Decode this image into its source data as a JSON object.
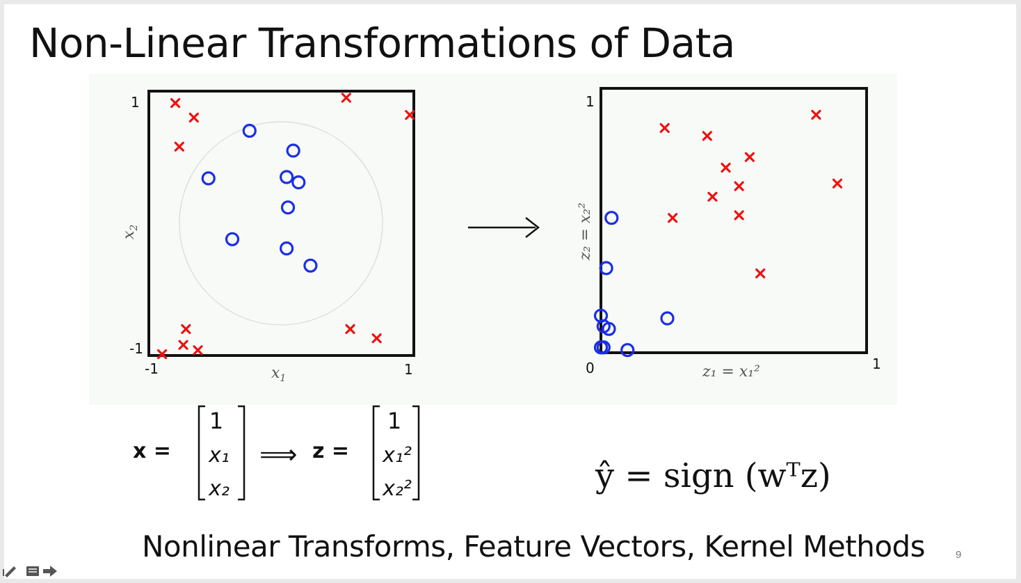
{
  "slide": {
    "title": "Non-Linear Transformations of Data",
    "footer": "Nonlinear Transforms, Feature Vectors, Kernel Methods",
    "page_number": "9"
  },
  "colors": {
    "positive": "#ee1111",
    "negative": "#1a2ee6",
    "axis": "#111111"
  },
  "plots": {
    "left": {
      "x_min": "-1",
      "x_max": "1",
      "y_min": "-1",
      "y_max": "1",
      "x_label_main": "x",
      "x_label_sub": "1",
      "y_label_main": "x",
      "y_label_sub": "2"
    },
    "right": {
      "origin": "0",
      "x_max": "1",
      "y_max": "1",
      "x_label": "z₁ = x₁²",
      "y_label": "z₂ = x₂²"
    }
  },
  "formulas": {
    "x_vector_lhs": "x =",
    "arrow": "⟹",
    "z_vector_lhs": "z =",
    "x_vector": [
      "1",
      "x₁",
      "x₂"
    ],
    "z_vector": [
      "1",
      "x₁²",
      "x₂²"
    ],
    "prediction": "ŷ = sign (wᵀz)"
  },
  "chart_data": [
    {
      "type": "scatter",
      "title": "",
      "xlabel": "x1",
      "ylabel": "x2",
      "xlim": [
        -1,
        1
      ],
      "ylim": [
        -1,
        1
      ],
      "grid": false,
      "annotations": [
        "faint circle of radius ~0.77 centred at (0, 0)"
      ],
      "series": [
        {
          "marker": "x",
          "color": "#ee1111",
          "points": [
            [
              -0.8,
              0.91
            ],
            [
              -0.66,
              0.8
            ],
            [
              -0.77,
              0.58
            ],
            [
              0.49,
              0.95
            ],
            [
              0.97,
              0.82
            ],
            [
              -0.72,
              -0.8
            ],
            [
              -0.74,
              -0.92
            ],
            [
              -0.63,
              -0.96
            ],
            [
              -0.9,
              -0.99
            ],
            [
              0.52,
              -0.8
            ],
            [
              0.72,
              -0.87
            ]
          ]
        },
        {
          "marker": "o",
          "color": "#1a2ee6",
          "points": [
            [
              -0.24,
              0.7
            ],
            [
              0.09,
              0.55
            ],
            [
              -0.55,
              0.34
            ],
            [
              0.04,
              0.35
            ],
            [
              0.13,
              0.31
            ],
            [
              0.05,
              0.12
            ],
            [
              -0.37,
              -0.12
            ],
            [
              0.04,
              -0.19
            ],
            [
              0.22,
              -0.32
            ]
          ]
        }
      ]
    },
    {
      "type": "scatter",
      "title": "",
      "xlabel": "z1 = x1^2",
      "ylabel": "z2 = x2^2",
      "xlim": [
        0,
        1
      ],
      "ylim": [
        0,
        1
      ],
      "grid": false,
      "series": [
        {
          "marker": "x",
          "color": "#ee1111",
          "points": [
            [
              0.24,
              0.85
            ],
            [
              0.4,
              0.82
            ],
            [
              0.56,
              0.74
            ],
            [
              0.81,
              0.9
            ],
            [
              0.47,
              0.7
            ],
            [
              0.52,
              0.63
            ],
            [
              0.42,
              0.59
            ],
            [
              0.27,
              0.51
            ],
            [
              0.52,
              0.52
            ],
            [
              0.6,
              0.3
            ],
            [
              0.89,
              0.64
            ]
          ]
        },
        {
          "marker": "o",
          "color": "#1a2ee6",
          "points": [
            [
              0.04,
              0.51
            ],
            [
              0.02,
              0.32
            ],
            [
              0.0,
              0.14
            ],
            [
              0.01,
              0.1
            ],
            [
              0.03,
              0.09
            ],
            [
              0.25,
              0.13
            ],
            [
              0.0,
              0.02
            ],
            [
              0.01,
              0.02
            ],
            [
              0.1,
              0.01
            ]
          ]
        }
      ]
    }
  ]
}
